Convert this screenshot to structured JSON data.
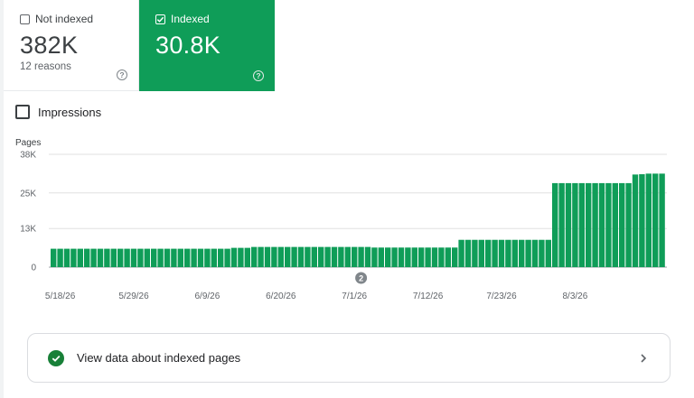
{
  "cards": {
    "not_indexed": {
      "label": "Not indexed",
      "value": "382K",
      "sub": "12 reasons",
      "help": "?"
    },
    "indexed": {
      "label": "Indexed",
      "value": "30.8K",
      "help": "?"
    }
  },
  "impressions": {
    "label": "Impressions"
  },
  "link_card": {
    "label": "View data about indexed pages"
  },
  "colors": {
    "accent": "#0f9d58",
    "bar": "#0f9d58",
    "grid": "#e0e0e0"
  },
  "chart_data": {
    "type": "bar",
    "ylabel": "Pages",
    "yticks": [
      "38K",
      "25K",
      "13K",
      "0"
    ],
    "ytick_values": [
      38000,
      25000,
      13000,
      0
    ],
    "ylim": [
      0,
      38000
    ],
    "x_tick_labels": [
      "5/18/26",
      "5/29/26",
      "6/9/26",
      "6/20/26",
      "7/1/26",
      "7/12/26",
      "7/23/26",
      "8/3/26"
    ],
    "x_tick_indices": [
      1,
      12,
      23,
      34,
      45,
      56,
      67,
      78
    ],
    "annotation": {
      "label": "2",
      "index": 46
    },
    "grid": true,
    "series": [
      {
        "values": [
          6200,
          6200,
          6200,
          6200,
          6200,
          6200,
          6200,
          6200,
          6200,
          6200,
          6200,
          6200,
          6200,
          6200,
          6200,
          6200,
          6200,
          6200,
          6200,
          6200,
          6200,
          6200,
          6200,
          6200,
          6200,
          6200,
          6200,
          6500,
          6500,
          6500,
          6800,
          6800,
          6800,
          6800,
          6800,
          6800,
          6800,
          6800,
          6800,
          6800,
          6800,
          6800,
          6800,
          6800,
          6800,
          6800,
          6800,
          6800,
          6600,
          6600,
          6600,
          6600,
          6600,
          6600,
          6600,
          6600,
          6600,
          6600,
          6600,
          6600,
          6600,
          9200,
          9200,
          9200,
          9200,
          9200,
          9200,
          9200,
          9200,
          9200,
          9200,
          9200,
          9200,
          9200,
          9200,
          28300,
          28300,
          28300,
          28300,
          28300,
          28300,
          28300,
          28300,
          28300,
          28300,
          28300,
          28300,
          31200,
          31300,
          31500,
          31500,
          31500
        ]
      }
    ]
  }
}
